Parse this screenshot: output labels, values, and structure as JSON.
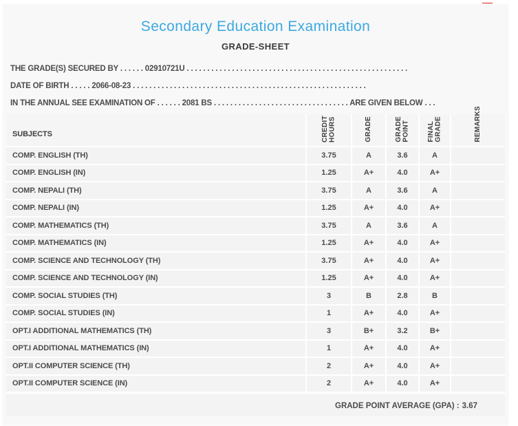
{
  "colors": {
    "title_accent": "#3aa9e2",
    "card_background": "#f8f8f8",
    "row_background": "#f3f3f3",
    "text": "#4b4b4b",
    "red_marker": "#dd2418"
  },
  "header": {
    "title": "Secondary Education Examination",
    "subtitle": "GRADE-SHEET"
  },
  "statements": [
    {
      "label": "THE GRADE(S) SECURED BY",
      "dots1": ". . . . . .",
      "value": "02910721U",
      "dots2": ". . . . . . . . . . . . . . . . . . . . . . . . . . . . . . . . . . . . . . . . . . . . . . . . . . . . . ."
    },
    {
      "label": "DATE OF BIRTH",
      "dots1": ". . . . .",
      "value": "2066-08-23",
      "dots2": ". . . . . . . . . . . . . . . . . . . . . . . . . . . . . . . . . . . . . . . . . . . . . . . . . . . . . . . . ."
    },
    {
      "label": "IN THE ANNUAL SEE EXAMINATION OF",
      "dots1": ". . . . . .",
      "value": "2081 BS",
      "dots2": ". . . . . . . . . . . . . . . . . . . . . . . . . . . . . . . . .",
      "suffix": "ARE GIVEN BELOW",
      "dots3": ". . ."
    }
  ],
  "table": {
    "subjects_header": "SUBJECTS",
    "columns": [
      {
        "id": "credit-hours",
        "lines": [
          "CREDIT",
          "HOURS"
        ]
      },
      {
        "id": "grade",
        "lines": [
          "GRADE"
        ]
      },
      {
        "id": "grade-point",
        "lines": [
          "GRADE",
          "POINT"
        ]
      },
      {
        "id": "final-grade",
        "lines": [
          "FINAL",
          "GRADE"
        ]
      },
      {
        "id": "remarks",
        "lines": [
          "REMARKS"
        ]
      }
    ],
    "rows": [
      {
        "subject": "COMP. ENGLISH (TH)",
        "credit_hours": "3.75",
        "grade": "A",
        "grade_point": "3.6",
        "final_grade": "A",
        "remarks": ""
      },
      {
        "subject": "COMP. ENGLISH (IN)",
        "credit_hours": "1.25",
        "grade": "A+",
        "grade_point": "4.0",
        "final_grade": "A+",
        "remarks": ""
      },
      {
        "subject": "COMP. NEPALI (TH)",
        "credit_hours": "3.75",
        "grade": "A",
        "grade_point": "3.6",
        "final_grade": "A",
        "remarks": ""
      },
      {
        "subject": "COMP. NEPALI (IN)",
        "credit_hours": "1.25",
        "grade": "A+",
        "grade_point": "4.0",
        "final_grade": "A+",
        "remarks": ""
      },
      {
        "subject": "COMP. MATHEMATICS (TH)",
        "credit_hours": "3.75",
        "grade": "A",
        "grade_point": "3.6",
        "final_grade": "A",
        "remarks": ""
      },
      {
        "subject": "COMP. MATHEMATICS (IN)",
        "credit_hours": "1.25",
        "grade": "A+",
        "grade_point": "4.0",
        "final_grade": "A+",
        "remarks": ""
      },
      {
        "subject": "COMP. SCIENCE AND TECHNOLOGY (TH)",
        "credit_hours": "3.75",
        "grade": "A+",
        "grade_point": "4.0",
        "final_grade": "A+",
        "remarks": ""
      },
      {
        "subject": "COMP. SCIENCE AND TECHNOLOGY (IN)",
        "credit_hours": "1.25",
        "grade": "A+",
        "grade_point": "4.0",
        "final_grade": "A+",
        "remarks": ""
      },
      {
        "subject": "COMP. SOCIAL STUDIES (TH)",
        "credit_hours": "3",
        "grade": "B",
        "grade_point": "2.8",
        "final_grade": "B",
        "remarks": ""
      },
      {
        "subject": "COMP. SOCIAL STUDIES (IN)",
        "credit_hours": "1",
        "grade": "A+",
        "grade_point": "4.0",
        "final_grade": "A+",
        "remarks": ""
      },
      {
        "subject": "OPT.I ADDITIONAL MATHEMATICS (TH)",
        "credit_hours": "3",
        "grade": "B+",
        "grade_point": "3.2",
        "final_grade": "B+",
        "remarks": ""
      },
      {
        "subject": "OPT.I ADDITIONAL MATHEMATICS (IN)",
        "credit_hours": "1",
        "grade": "A+",
        "grade_point": "4.0",
        "final_grade": "A+",
        "remarks": ""
      },
      {
        "subject": "OPT.II COMPUTER SCIENCE (TH)",
        "credit_hours": "2",
        "grade": "A+",
        "grade_point": "4.0",
        "final_grade": "A+",
        "remarks": ""
      },
      {
        "subject": "OPT.II COMPUTER SCIENCE (IN)",
        "credit_hours": "2",
        "grade": "A+",
        "grade_point": "4.0",
        "final_grade": "A+",
        "remarks": ""
      }
    ]
  },
  "footer": {
    "gpa_label": "GRADE POINT AVERAGE (GPA) :",
    "gpa_value": "3.67"
  }
}
